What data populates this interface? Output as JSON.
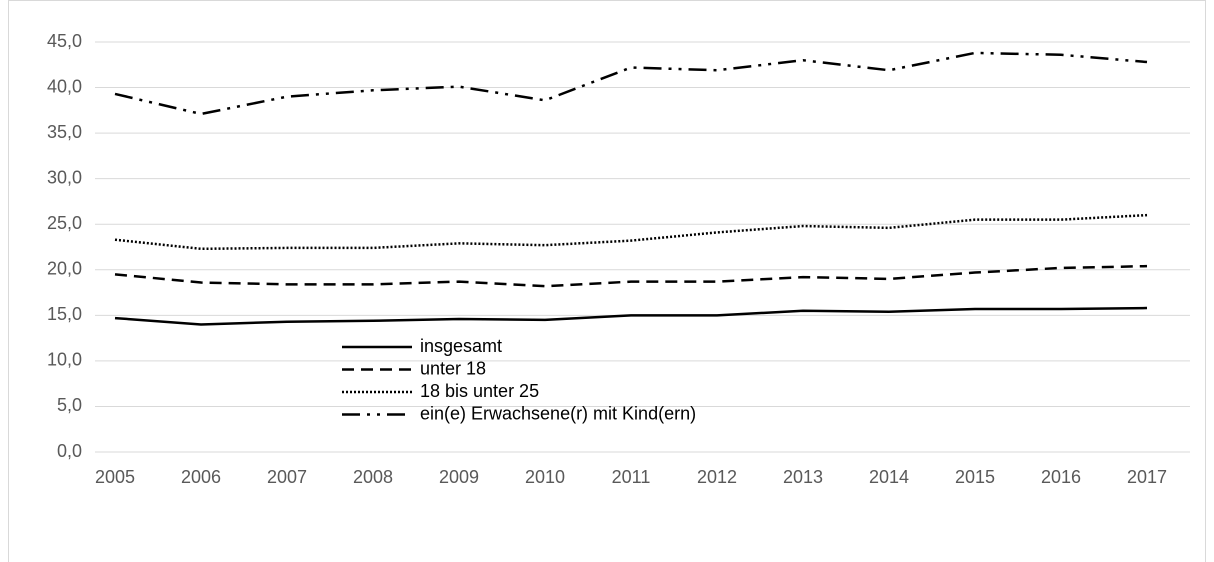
{
  "chart_data": {
    "type": "line",
    "categories": [
      "2005",
      "2006",
      "2007",
      "2008",
      "2009",
      "2010",
      "2011",
      "2012",
      "2013",
      "2014",
      "2015",
      "2016",
      "2017"
    ],
    "series": [
      {
        "name": "insgesamt",
        "color": "#000000",
        "style": "solid",
        "values": [
          14.7,
          14.0,
          14.3,
          14.4,
          14.6,
          14.5,
          15.0,
          15.0,
          15.5,
          15.4,
          15.7,
          15.7,
          15.8
        ]
      },
      {
        "name": "unter 18",
        "color": "#000000",
        "style": "dashed",
        "values": [
          19.5,
          18.6,
          18.4,
          18.4,
          18.7,
          18.2,
          18.7,
          18.7,
          19.2,
          19.0,
          19.7,
          20.2,
          20.4
        ]
      },
      {
        "name": "18 bis unter 25",
        "color": "#000000",
        "style": "dotted",
        "values": [
          23.3,
          22.3,
          22.4,
          22.4,
          22.9,
          22.7,
          23.2,
          24.1,
          24.8,
          24.6,
          25.5,
          25.5,
          26.0
        ]
      },
      {
        "name": "ein(e) Erwachsene(r) mit Kind(ern)",
        "color": "#000000",
        "style": "dash-dot-dot",
        "values": [
          39.3,
          37.1,
          39.0,
          39.7,
          40.1,
          38.6,
          42.2,
          41.9,
          43.0,
          41.9,
          43.8,
          43.6,
          42.8
        ]
      }
    ],
    "ylim": [
      0,
      45
    ],
    "yticks": [
      {
        "value": 0,
        "label": "0,0"
      },
      {
        "value": 5,
        "label": "5,0"
      },
      {
        "value": 10,
        "label": "10,0"
      },
      {
        "value": 15,
        "label": "15,0"
      },
      {
        "value": 20,
        "label": "20,0"
      },
      {
        "value": 25,
        "label": "25,0"
      },
      {
        "value": 30,
        "label": "30,0"
      },
      {
        "value": 35,
        "label": "35,0"
      },
      {
        "value": 40,
        "label": "40,0"
      },
      {
        "value": 45,
        "label": "45,0"
      }
    ],
    "grid": true
  }
}
